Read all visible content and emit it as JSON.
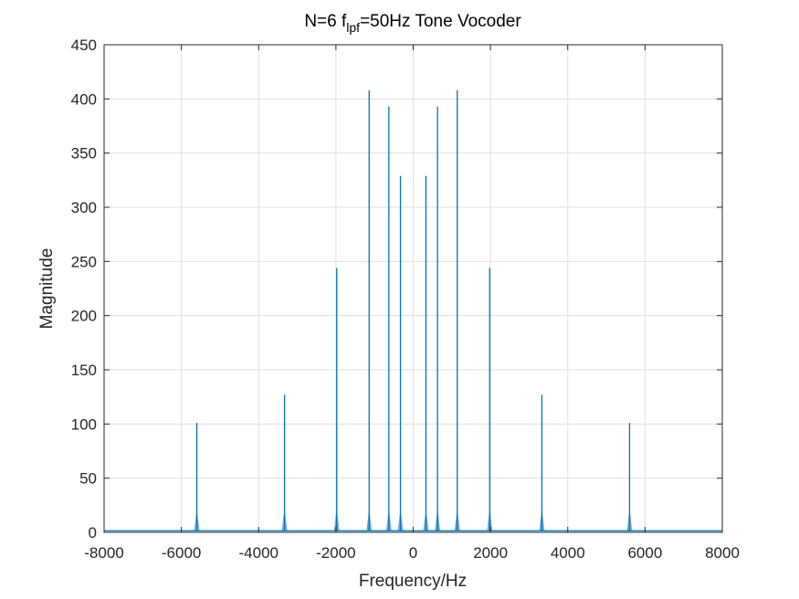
{
  "chart_data": {
    "type": "line",
    "title": {
      "prefix": "N=6 f",
      "subscript": "lpf",
      "suffix": "=50Hz Tone Vocoder"
    },
    "xlabel": "Frequency/Hz",
    "ylabel": "Magnitude",
    "xlim": [
      -8000,
      8000
    ],
    "ylim": [
      0,
      450
    ],
    "xticks": [
      -8000,
      -6000,
      -4000,
      -2000,
      0,
      2000,
      4000,
      6000,
      8000
    ],
    "yticks": [
      0,
      50,
      100,
      150,
      200,
      250,
      300,
      350,
      400,
      450
    ],
    "grid": true,
    "baseline": 1.5,
    "series": [
      {
        "color": "#0072BD",
        "peaks": [
          {
            "x": -5600,
            "y": 101
          },
          {
            "x": -3330,
            "y": 127
          },
          {
            "x": -1980,
            "y": 244
          },
          {
            "x": -1140,
            "y": 408
          },
          {
            "x": -630,
            "y": 393
          },
          {
            "x": -330,
            "y": 329
          },
          {
            "x": 330,
            "y": 329
          },
          {
            "x": 630,
            "y": 393
          },
          {
            "x": 1140,
            "y": 408
          },
          {
            "x": 1980,
            "y": 244
          },
          {
            "x": 3330,
            "y": 127
          },
          {
            "x": 5600,
            "y": 101
          }
        ]
      }
    ]
  }
}
